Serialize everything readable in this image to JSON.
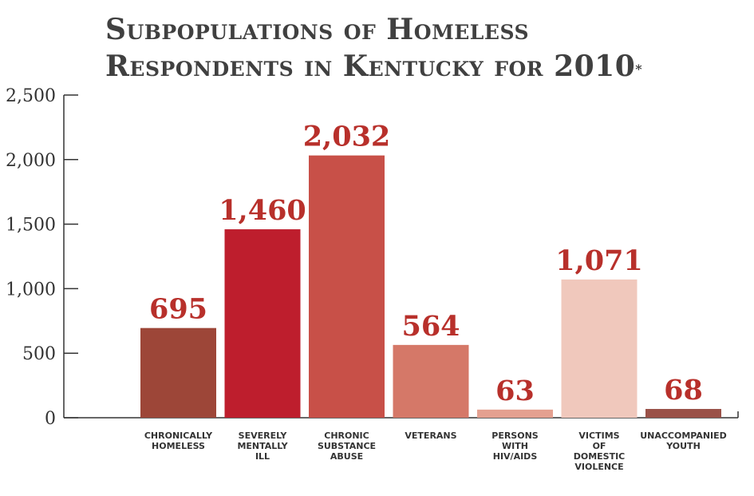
{
  "title": {
    "line1": "Subpopulations of Homeless",
    "line2": "Respondents in Kentucky for 2010",
    "footnote_mark": "*"
  },
  "chart_data": {
    "type": "bar",
    "title": "Subpopulations of Homeless Respondents in Kentucky for 2010*",
    "xlabel": "",
    "ylabel": "",
    "ylim": [
      0,
      2500
    ],
    "yticks": [
      0,
      500,
      1000,
      1500,
      2000,
      2500
    ],
    "ytick_labels": [
      "0",
      "500",
      "1,000",
      "1,500",
      "2,000",
      "2,500"
    ],
    "grid": false,
    "categories": [
      [
        "CHRONICALLY",
        "HOMELESS"
      ],
      [
        "SEVERELY",
        "MENTALLY",
        "ILL"
      ],
      [
        "CHRONIC",
        "SUBSTANCE",
        "ABUSE"
      ],
      [
        "VETERANS"
      ],
      [
        "PERSONS",
        "WITH",
        "HIV/AIDS"
      ],
      [
        "VICTIMS",
        "OF",
        "DOMESTIC",
        "VIOLENCE"
      ],
      [
        "UNACCOMPANIED",
        "YOUTH"
      ]
    ],
    "values": [
      695,
      1460,
      2032,
      564,
      63,
      1071,
      68
    ],
    "value_labels": [
      "695",
      "1,460",
      "2,032",
      "564",
      "63",
      "1,071",
      "68"
    ],
    "colors": [
      "#9d4638",
      "#be1e2d",
      "#c85048",
      "#d57868",
      "#e4a090",
      "#f0c8bc",
      "#9a5148"
    ]
  }
}
